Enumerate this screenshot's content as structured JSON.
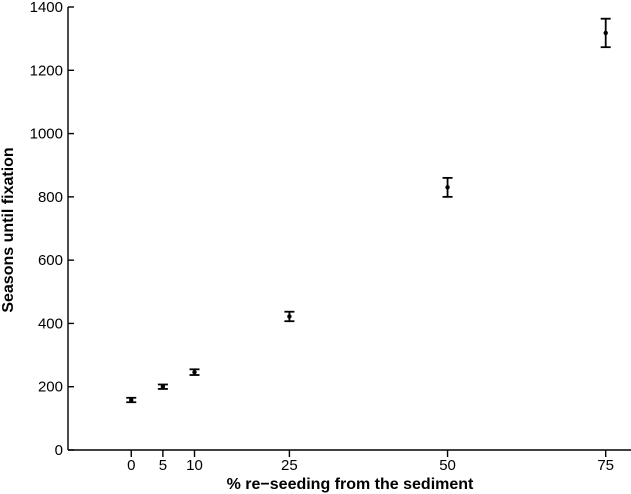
{
  "chart_data": {
    "type": "scatter",
    "title": "",
    "xlabel": "% re−seeding from the sediment",
    "ylabel": "Seasons until fixation",
    "xlim": [
      -10,
      79
    ],
    "ylim": [
      0,
      1400
    ],
    "xticks": [
      0,
      5,
      10,
      25,
      50,
      75
    ],
    "yticks": [
      0,
      200,
      400,
      600,
      800,
      1000,
      1200,
      1400
    ],
    "grid": false,
    "legend": "none",
    "points": [
      {
        "x": 0,
        "y": 158,
        "err": 7
      },
      {
        "x": 5,
        "y": 200,
        "err": 7
      },
      {
        "x": 10,
        "y": 246,
        "err": 9
      },
      {
        "x": 25,
        "y": 422,
        "err": 15
      },
      {
        "x": 50,
        "y": 830,
        "err": 30
      },
      {
        "x": 75,
        "y": 1318,
        "err": 45
      }
    ],
    "colors": {
      "marker": "#000000",
      "axis": "#000000"
    }
  }
}
